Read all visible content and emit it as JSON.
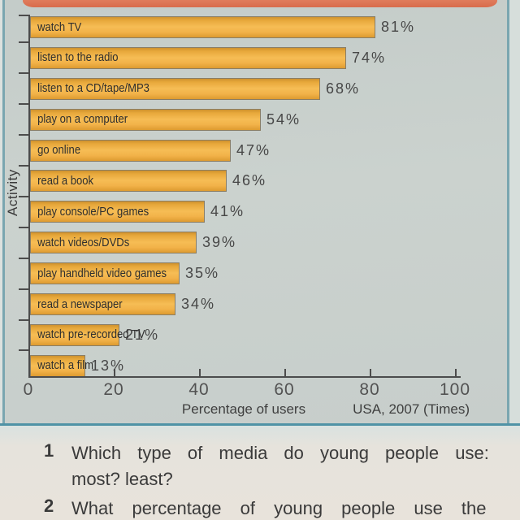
{
  "chart": {
    "ylabel": "Activity",
    "xlabel": "Percentage of users",
    "source_note": "USA, 2007 (Times)"
  },
  "chart_data": {
    "type": "bar",
    "orientation": "horizontal",
    "title": "",
    "categories": [
      "watch TV",
      "listen to the radio",
      "listen to a CD/tape/MP3",
      "play on a computer",
      "go online",
      "read a book",
      "play console/PC games",
      "watch videos/DVDs",
      "play handheld video games",
      "read a newspaper",
      "watch pre-recorded TV",
      "watch a film"
    ],
    "values": [
      81,
      74,
      68,
      54,
      47,
      46,
      41,
      39,
      35,
      34,
      21,
      13
    ],
    "value_labels": [
      "81%",
      "74%",
      "68%",
      "54%",
      "47%",
      "46%",
      "41%",
      "39%",
      "35%",
      "34%",
      "21%",
      "13%"
    ],
    "xlabel": "Percentage of users",
    "ylabel": "Activity",
    "xlim": [
      0,
      100
    ],
    "x_ticks": [
      0,
      20,
      40,
      60,
      80,
      100
    ],
    "x_tick_labels": [
      "0",
      "20",
      "40",
      "60",
      "80",
      "100"
    ],
    "legend": null,
    "grid": false,
    "annotation": "USA, 2007 (Times)"
  },
  "questions": {
    "q1_number": "1",
    "q1_line1": "Which type of media do young people use:",
    "q1_line2": "most? least?",
    "q2_number": "2",
    "q2_text": "What percentage of young people use the"
  },
  "colors": {
    "bar_fill": "#f2b249",
    "bar_border": "#8a7e66",
    "header_strip": "#d86c4c",
    "box_border_teal": "#7aa6b0",
    "separator_teal": "#4f93a6",
    "chart_background": "#c9cfcb",
    "paper_background": "#e8e3db",
    "axis": "#4c4c4c",
    "text": "#3a3a3a"
  }
}
